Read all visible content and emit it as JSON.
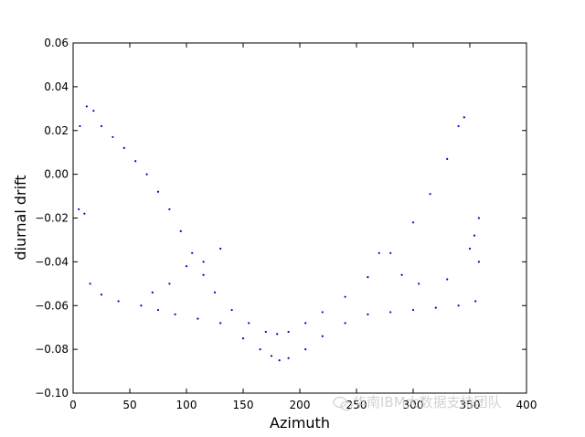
{
  "chart_data": {
    "type": "scatter",
    "title": "",
    "xlabel": "Azimuth",
    "ylabel": "diurnal drift",
    "xlim": [
      0,
      400
    ],
    "ylim": [
      -0.1,
      0.06
    ],
    "x_ticks": [
      0,
      50,
      100,
      150,
      200,
      250,
      300,
      350,
      400
    ],
    "y_ticks": [
      -0.1,
      -0.08,
      -0.06,
      -0.04,
      -0.02,
      0.0,
      0.02,
      0.04,
      0.06
    ],
    "x_tick_labels": [
      "0",
      "50",
      "100",
      "150",
      "200",
      "250",
      "300",
      "350",
      "400"
    ],
    "y_tick_labels": [
      "−0.10",
      "−0.08",
      "−0.06",
      "−0.04",
      "−0.02",
      "0.00",
      "0.02",
      "0.04",
      "0.06"
    ],
    "grid": false,
    "marker_color": "#0000cc",
    "series": [
      {
        "points": [
          [
            6,
            0.022
          ],
          [
            12,
            0.031
          ],
          [
            18,
            0.029
          ],
          [
            25,
            0.022
          ],
          [
            35,
            0.017
          ],
          [
            45,
            0.012
          ],
          [
            55,
            0.006
          ],
          [
            65,
            0.0
          ],
          [
            75,
            -0.008
          ],
          [
            85,
            -0.016
          ],
          [
            95,
            -0.026
          ],
          [
            105,
            -0.036
          ],
          [
            115,
            -0.046
          ],
          [
            125,
            -0.054
          ],
          [
            140,
            -0.062
          ],
          [
            155,
            -0.068
          ],
          [
            170,
            -0.072
          ],
          [
            180,
            -0.073
          ],
          [
            190,
            -0.072
          ],
          [
            205,
            -0.068
          ],
          [
            220,
            -0.063
          ],
          [
            240,
            -0.056
          ],
          [
            260,
            -0.047
          ],
          [
            280,
            -0.036
          ],
          [
            300,
            -0.022
          ],
          [
            315,
            -0.009
          ],
          [
            330,
            0.007
          ],
          [
            340,
            0.022
          ],
          [
            345,
            0.026
          ],
          [
            5,
            -0.016
          ],
          [
            10,
            -0.018
          ],
          [
            15,
            -0.05
          ],
          [
            25,
            -0.055
          ],
          [
            40,
            -0.058
          ],
          [
            60,
            -0.06
          ],
          [
            75,
            -0.062
          ],
          [
            90,
            -0.064
          ],
          [
            110,
            -0.066
          ],
          [
            130,
            -0.068
          ],
          [
            150,
            -0.075
          ],
          [
            165,
            -0.08
          ],
          [
            175,
            -0.083
          ],
          [
            182,
            -0.085
          ],
          [
            190,
            -0.084
          ],
          [
            205,
            -0.08
          ],
          [
            220,
            -0.074
          ],
          [
            240,
            -0.068
          ],
          [
            260,
            -0.064
          ],
          [
            280,
            -0.063
          ],
          [
            300,
            -0.062
          ],
          [
            320,
            -0.061
          ],
          [
            340,
            -0.06
          ],
          [
            355,
            -0.058
          ],
          [
            358,
            -0.04
          ],
          [
            358,
            -0.02
          ],
          [
            354,
            -0.028
          ],
          [
            350,
            -0.034
          ],
          [
            330,
            -0.048
          ],
          [
            305,
            -0.05
          ],
          [
            290,
            -0.046
          ],
          [
            270,
            -0.036
          ],
          [
            130,
            -0.034
          ],
          [
            115,
            -0.04
          ],
          [
            100,
            -0.042
          ],
          [
            85,
            -0.05
          ],
          [
            70,
            -0.054
          ]
        ]
      }
    ]
  },
  "watermark": {
    "text": "华南IBM大数据支持团队"
  }
}
